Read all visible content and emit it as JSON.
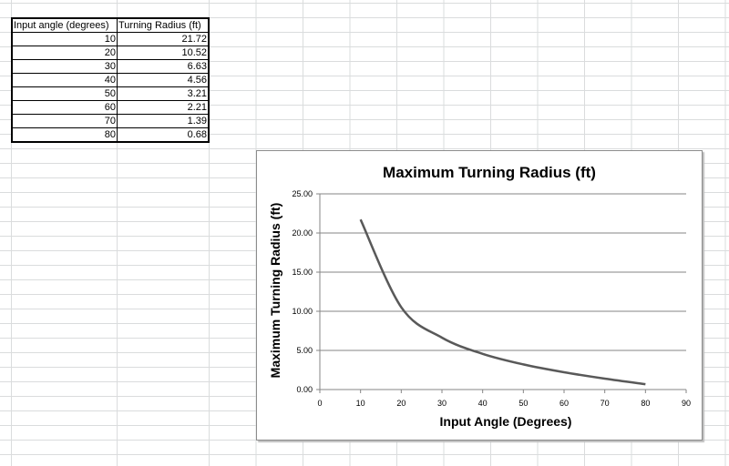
{
  "table": {
    "headers": [
      "Input angle (degrees)",
      "Turning Radius (ft)"
    ],
    "rows": [
      [
        "10",
        "21.72"
      ],
      [
        "20",
        "10.52"
      ],
      [
        "30",
        "6.63"
      ],
      [
        "40",
        "4.56"
      ],
      [
        "50",
        "3.21"
      ],
      [
        "60",
        "2.21"
      ],
      [
        "70",
        "1.39"
      ],
      [
        "80",
        "0.68"
      ]
    ]
  },
  "chart_data": {
    "type": "line",
    "title": "Maximum Turning Radius (ft)",
    "xlabel": "Input Angle (Degrees)",
    "ylabel": "Maximum Turning Radius (ft)",
    "x": [
      10,
      20,
      30,
      40,
      50,
      60,
      70,
      80
    ],
    "series": [
      {
        "name": "Turning Radius (ft)",
        "values": [
          21.72,
          10.52,
          6.63,
          4.56,
          3.21,
          2.21,
          1.39,
          0.68
        ],
        "color": "#595959"
      }
    ],
    "xlim": [
      0,
      90
    ],
    "ylim": [
      0,
      25
    ],
    "xticks": [
      "0",
      "10",
      "20",
      "30",
      "40",
      "50",
      "60",
      "70",
      "80",
      "90"
    ],
    "yticks": [
      "0.00",
      "5.00",
      "10.00",
      "15.00",
      "20.00",
      "25.00"
    ],
    "grid": "horizontal",
    "legend": "none"
  }
}
